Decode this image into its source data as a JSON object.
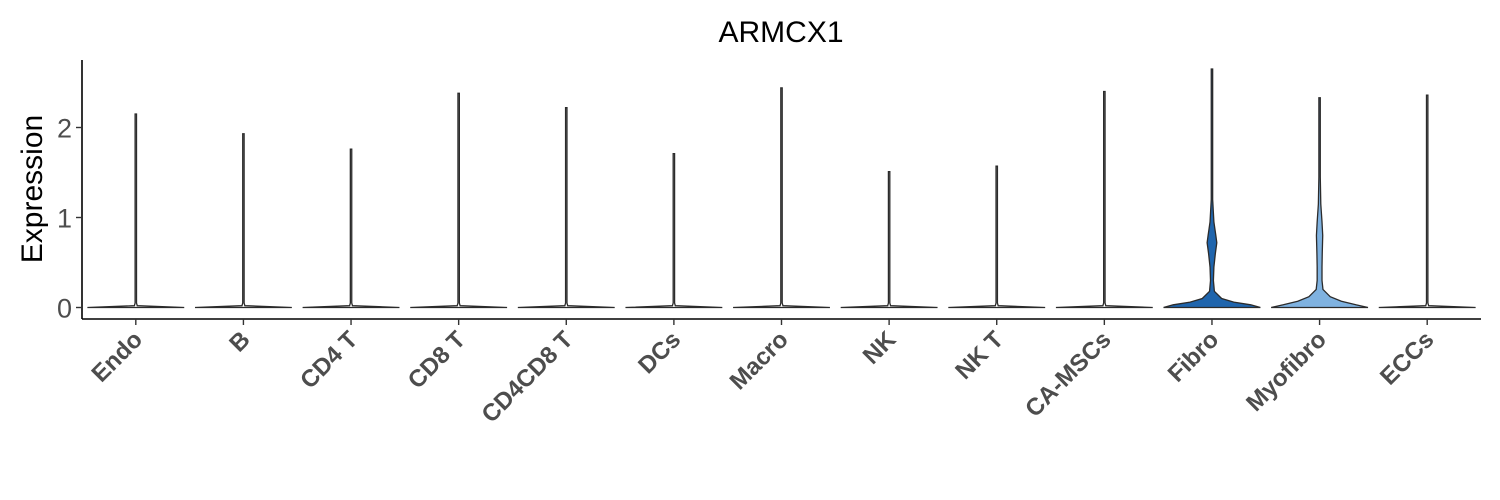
{
  "chart_data": {
    "type": "violin",
    "title": "ARMCX1",
    "xlabel": "",
    "ylabel": "Expression",
    "ylim": [
      -0.12,
      2.8
    ],
    "yticks": [
      "0",
      "1",
      "2"
    ],
    "ytick_values": [
      0,
      1,
      2
    ],
    "grid": false,
    "legend": "none",
    "categories": [
      "Endo",
      "B",
      "CD4 T",
      "CD8 T",
      "CD4CD8 T",
      "DCs",
      "Macro",
      "NK",
      "NK T",
      "CA-MSCs",
      "Fibro",
      "Myofibro",
      "ECCs"
    ],
    "max_values": [
      2.15,
      1.93,
      1.76,
      2.38,
      2.22,
      1.71,
      2.44,
      1.51,
      1.57,
      2.4,
      2.65,
      2.33,
      2.36
    ],
    "fill_colors": [
      "#ffffff",
      "#ffffff",
      "#ffffff",
      "#ffffff",
      "#ffffff",
      "#ffffff",
      "#ffffff",
      "#ffffff",
      "#ffffff",
      "#ffffff",
      "#1f65ad",
      "#7fb2e0",
      "#ffffff"
    ],
    "density_profiles": [
      [
        [
          0,
          1.0
        ],
        [
          0.02,
          0.03
        ],
        [
          0.05,
          0.005
        ]
      ],
      [
        [
          0,
          1.0
        ],
        [
          0.02,
          0.03
        ],
        [
          0.05,
          0.005
        ]
      ],
      [
        [
          0,
          1.0
        ],
        [
          0.02,
          0.03
        ],
        [
          0.05,
          0.005
        ]
      ],
      [
        [
          0,
          1.0
        ],
        [
          0.02,
          0.03
        ],
        [
          0.05,
          0.005
        ]
      ],
      [
        [
          0,
          1.0
        ],
        [
          0.02,
          0.03
        ],
        [
          0.05,
          0.005
        ]
      ],
      [
        [
          0,
          1.0
        ],
        [
          0.02,
          0.03
        ],
        [
          0.05,
          0.005
        ]
      ],
      [
        [
          0,
          1.0
        ],
        [
          0.02,
          0.03
        ],
        [
          0.05,
          0.005
        ]
      ],
      [
        [
          0,
          1.0
        ],
        [
          0.02,
          0.03
        ],
        [
          0.05,
          0.005
        ]
      ],
      [
        [
          0,
          1.0
        ],
        [
          0.02,
          0.03
        ],
        [
          0.05,
          0.005
        ]
      ],
      [
        [
          0,
          1.0
        ],
        [
          0.02,
          0.03
        ],
        [
          0.05,
          0.005
        ]
      ],
      [
        [
          0,
          1.0
        ],
        [
          0.03,
          0.8
        ],
        [
          0.06,
          0.45
        ],
        [
          0.1,
          0.2
        ],
        [
          0.18,
          0.05
        ],
        [
          0.3,
          0.03
        ],
        [
          0.45,
          0.04
        ],
        [
          0.6,
          0.07
        ],
        [
          0.72,
          0.1
        ],
        [
          0.8,
          0.08
        ],
        [
          0.95,
          0.04
        ],
        [
          1.2,
          0.01
        ],
        [
          1.5,
          0.004
        ]
      ],
      [
        [
          0,
          1.0
        ],
        [
          0.03,
          0.75
        ],
        [
          0.07,
          0.45
        ],
        [
          0.12,
          0.22
        ],
        [
          0.2,
          0.07
        ],
        [
          0.3,
          0.05
        ],
        [
          0.45,
          0.05
        ],
        [
          0.6,
          0.055
        ],
        [
          0.8,
          0.065
        ],
        [
          0.95,
          0.05
        ],
        [
          1.15,
          0.025
        ],
        [
          1.45,
          0.01
        ],
        [
          1.8,
          0.004
        ]
      ],
      [
        [
          0,
          1.0
        ],
        [
          0.02,
          0.03
        ],
        [
          0.05,
          0.005
        ]
      ]
    ]
  }
}
